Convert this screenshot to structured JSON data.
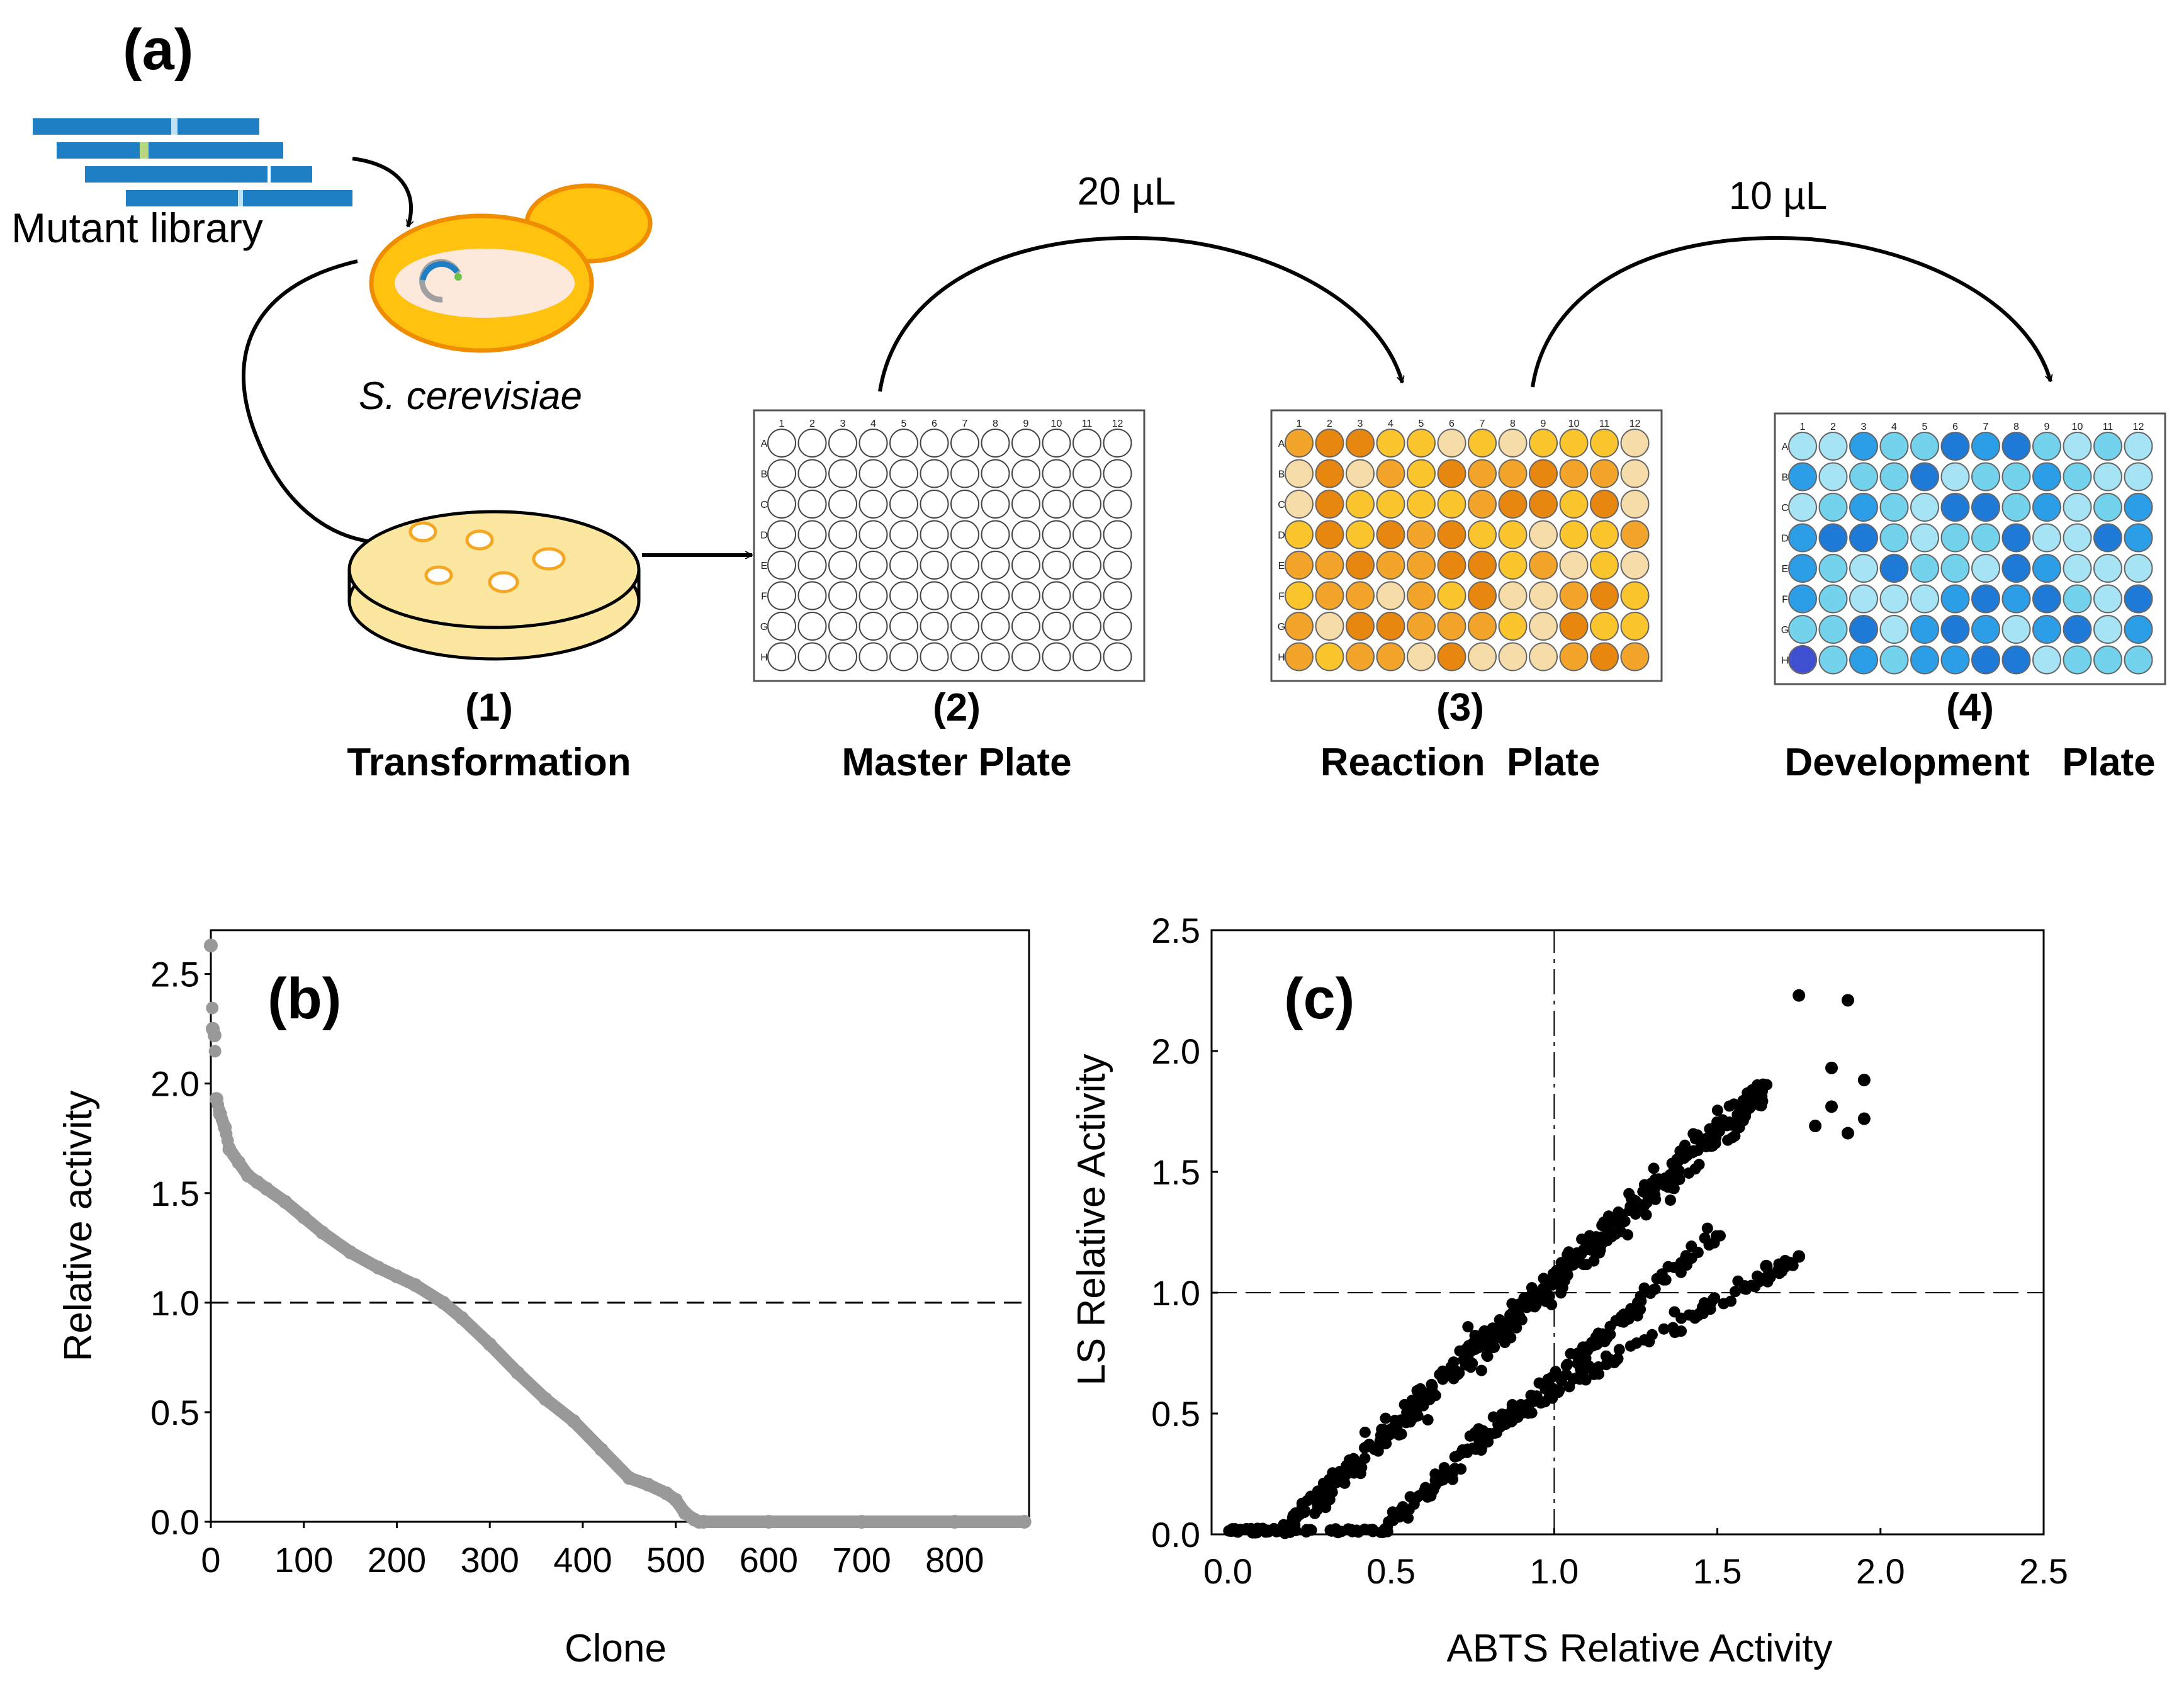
{
  "panel_a": {
    "label": "(a)",
    "mutant_library": "Mutant library",
    "organism": "S. cerevisiae",
    "transfer_1": "20 µL",
    "transfer_2": "10 µL",
    "plate_cols": [
      "1",
      "2",
      "3",
      "4",
      "5",
      "6",
      "7",
      "8",
      "9",
      "10",
      "11",
      "12"
    ],
    "plate_rows": [
      "A",
      "B",
      "C",
      "D",
      "E",
      "F",
      "G",
      "H"
    ],
    "steps": [
      {
        "num": "(1)",
        "name": "Transformation"
      },
      {
        "num": "(2)",
        "name": "Master Plate"
      },
      {
        "num": "(3)",
        "name": "Reaction  Plate"
      },
      {
        "num": "(4)",
        "name": "Development   Plate"
      }
    ],
    "colors": {
      "library_blue": "#1f7fc4",
      "yeast_outer": "#ffc20e",
      "yeast_edge": "#f08c00",
      "petri_agar": "#fbe7a0",
      "reaction_palette": [
        "#e8870f",
        "#f2a52a",
        "#fbc52e",
        "#f5dca8",
        "#faefd3"
      ],
      "development_palette": [
        "#1e7ad6",
        "#2c9ee8",
        "#74d3ec",
        "#a6e3f4",
        "#3f4fd2"
      ]
    }
  },
  "chart_data": [
    {
      "id": "b",
      "type": "scatter",
      "title": "(b)",
      "xlabel": "Clone",
      "ylabel": "Relative activity",
      "xlim": [
        0,
        880
      ],
      "ylim": [
        0,
        2.7
      ],
      "xticks": [
        "0",
        "100",
        "200",
        "300",
        "400",
        "500",
        "600",
        "700",
        "800"
      ],
      "yticks": [
        "0.0",
        "0.5",
        "1.0",
        "1.5",
        "2.0",
        "2.5"
      ],
      "reference_line_y": 1.0,
      "marker_color": "#999999",
      "series": [
        {
          "name": "ranked clones",
          "x": [
            0,
            2,
            4,
            6,
            10,
            15,
            20,
            30,
            40,
            50,
            60,
            80,
            100,
            120,
            150,
            180,
            200,
            220,
            250,
            270,
            300,
            330,
            360,
            390,
            420,
            450,
            470,
            490,
            500,
            510,
            520,
            525,
            530,
            600,
            700,
            800,
            875
          ],
          "y": [
            2.63,
            2.25,
            2.22,
            1.93,
            1.86,
            1.8,
            1.7,
            1.64,
            1.58,
            1.55,
            1.52,
            1.46,
            1.39,
            1.32,
            1.23,
            1.16,
            1.12,
            1.08,
            1.0,
            0.93,
            0.81,
            0.68,
            0.56,
            0.46,
            0.33,
            0.2,
            0.17,
            0.13,
            0.1,
            0.04,
            0.01,
            0.0,
            0.0,
            0.0,
            0.0,
            0.0,
            0.0
          ]
        }
      ]
    },
    {
      "id": "c",
      "type": "scatter",
      "title": "(c)",
      "xlabel": "ABTS Relative Activity",
      "ylabel": "LS Relative Activity",
      "xlim": [
        -0.05,
        2.5
      ],
      "ylim": [
        0,
        2.5
      ],
      "xticks": [
        "0.0",
        "0.5",
        "1.0",
        "1.5",
        "2.0",
        "2.5"
      ],
      "yticks": [
        "0.0",
        "0.5",
        "1.0",
        "1.5",
        "2.0",
        "2.5"
      ],
      "reference_line_x": 1.0,
      "reference_line_y": 1.0,
      "marker_color": "#000000",
      "trends": [
        {
          "name": "main band",
          "from": [
            0.15,
            0.0
          ],
          "to": [
            1.65,
            1.85
          ]
        },
        {
          "name": "middle band",
          "from": [
            0.5,
            0.05
          ],
          "to": [
            1.5,
            1.25
          ]
        },
        {
          "name": "lower band",
          "from": [
            0.75,
            0.4
          ],
          "to": [
            1.75,
            1.15
          ]
        }
      ],
      "series": [
        {
          "name": "outliers",
          "x": [
            1.75,
            1.85,
            1.9,
            1.95,
            1.95,
            1.8,
            1.85,
            1.9,
            1.75,
            1.65
          ],
          "y": [
            2.23,
            1.93,
            2.21,
            1.88,
            1.72,
            1.69,
            1.77,
            1.66,
            1.15,
            1.11
          ]
        }
      ]
    }
  ]
}
